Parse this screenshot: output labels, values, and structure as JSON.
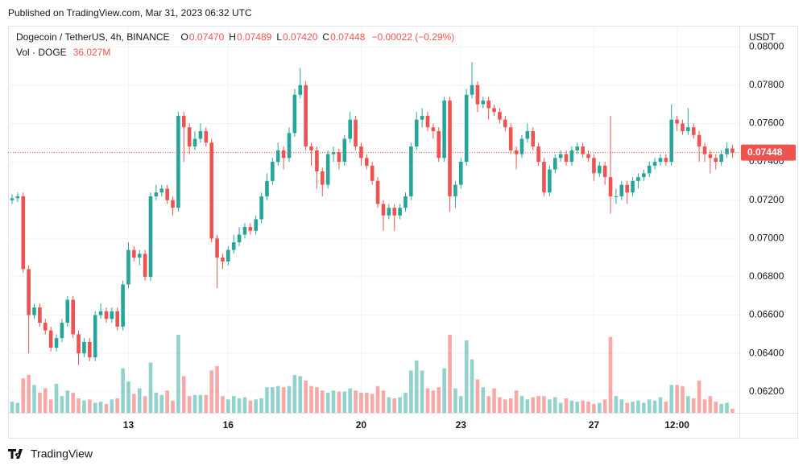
{
  "chart_data": {
    "type": "candlestick",
    "published": "Published on TradingView.com, Mar 31, 2023 06:32 UTC",
    "title": "Dogecoin / TetherUS, 4h, BINANCE",
    "ohlc_labels": [
      {
        "key": "O",
        "label": "0.07470"
      },
      {
        "key": "H",
        "label": "0.07489"
      },
      {
        "key": "L",
        "label": "0.07420"
      },
      {
        "key": "C",
        "label": "0.07448"
      }
    ],
    "change_label": "−0.00022 (−0.29%)",
    "volume_label": "Vol · DOGE",
    "volume_value_label": "36.027M",
    "y_axis_label": "USDT",
    "last_price_label": "0.07448",
    "brand": "TradingView",
    "up_color": "#26a69a",
    "down_color": "#ef5350",
    "categories": [
      null,
      null,
      null,
      null,
      null,
      null,
      null,
      null,
      null,
      null,
      null,
      null,
      null,
      null,
      null,
      null,
      null,
      null,
      null,
      null,
      null,
      "13",
      null,
      null,
      null,
      null,
      null,
      null,
      null,
      null,
      null,
      null,
      null,
      null,
      null,
      null,
      null,
      null,
      null,
      "16",
      null,
      null,
      null,
      null,
      null,
      null,
      null,
      null,
      null,
      null,
      null,
      null,
      null,
      null,
      null,
      null,
      null,
      null,
      null,
      null,
      null,
      null,
      null,
      "20",
      null,
      null,
      null,
      null,
      null,
      null,
      null,
      null,
      null,
      null,
      null,
      null,
      null,
      null,
      null,
      null,
      null,
      "23",
      null,
      null,
      null,
      null,
      null,
      null,
      null,
      null,
      null,
      null,
      null,
      null,
      null,
      null,
      null,
      null,
      null,
      null,
      null,
      null,
      null,
      null,
      null,
      "27",
      null,
      null,
      null,
      null,
      null,
      null,
      null,
      null,
      null,
      null,
      null,
      null,
      null,
      null,
      "12:00",
      null,
      null,
      null,
      null,
      null,
      null,
      null,
      null,
      null,
      null
    ],
    "open": [
      0.072,
      0.0721,
      0.0722,
      0.0684,
      0.066,
      0.0664,
      0.0656,
      0.0652,
      0.0643,
      0.0648,
      0.0656,
      0.0668,
      0.065,
      0.064,
      0.0646,
      0.0638,
      0.066,
      0.0662,
      0.0658,
      0.0662,
      0.0654,
      0.0676,
      0.0694,
      0.069,
      0.0692,
      0.068,
      0.0722,
      0.0724,
      0.0726,
      0.072,
      0.0716,
      0.0764,
      0.0758,
      0.0748,
      0.0752,
      0.0756,
      0.075,
      0.07,
      0.069,
      0.0688,
      0.0694,
      0.0698,
      0.0702,
      0.0706,
      0.0704,
      0.071,
      0.0722,
      0.073,
      0.074,
      0.0746,
      0.0742,
      0.0755,
      0.0775,
      0.078,
      0.0748,
      0.0746,
      0.0735,
      0.0728,
      0.0744,
      0.0745,
      0.074,
      0.0752,
      0.0762,
      0.0748,
      0.0742,
      0.0738,
      0.073,
      0.0718,
      0.0712,
      0.0716,
      0.0712,
      0.0716,
      0.0722,
      0.0748,
      0.0762,
      0.0764,
      0.0758,
      0.0756,
      0.0742,
      0.0772,
      0.0722,
      0.0728,
      0.074,
      0.0775,
      0.078,
      0.077,
      0.0772,
      0.0768,
      0.0766,
      0.0762,
      0.0758,
      0.0746,
      0.0744,
      0.0752,
      0.0756,
      0.0748,
      0.074,
      0.0724,
      0.0736,
      0.0742,
      0.0744,
      0.074,
      0.0746,
      0.0748,
      0.0744,
      0.0742,
      0.0734,
      0.0738,
      0.0732,
      0.0722,
      0.0722,
      0.0728,
      0.0724,
      0.073,
      0.0732,
      0.0734,
      0.0738,
      0.074,
      0.0742,
      0.074,
      0.0762,
      0.076,
      0.0756,
      0.0758,
      0.0754,
      0.0748,
      0.0744,
      0.0742,
      0.074,
      0.0744,
      0.0747
    ],
    "high": [
      0.0723,
      0.0724,
      0.0724,
      0.0686,
      0.0666,
      0.0666,
      0.0658,
      0.0654,
      0.065,
      0.0658,
      0.067,
      0.067,
      0.0652,
      0.0648,
      0.0648,
      0.0662,
      0.0666,
      0.0664,
      0.0664,
      0.0664,
      0.0678,
      0.0698,
      0.0696,
      0.0694,
      0.0694,
      0.0724,
      0.0728,
      0.0728,
      0.0728,
      0.0722,
      0.0766,
      0.0766,
      0.076,
      0.0756,
      0.076,
      0.0758,
      0.0752,
      0.0702,
      0.0692,
      0.0696,
      0.0702,
      0.0706,
      0.0708,
      0.0708,
      0.0712,
      0.0724,
      0.0734,
      0.0742,
      0.075,
      0.0748,
      0.0758,
      0.0778,
      0.0789,
      0.0782,
      0.075,
      0.0748,
      0.0737,
      0.0746,
      0.0748,
      0.0747,
      0.0754,
      0.0766,
      0.0764,
      0.075,
      0.0744,
      0.074,
      0.0732,
      0.072,
      0.0718,
      0.0718,
      0.0718,
      0.0724,
      0.075,
      0.0766,
      0.0768,
      0.0766,
      0.076,
      0.0758,
      0.0774,
      0.0774,
      0.073,
      0.0742,
      0.0778,
      0.0792,
      0.0782,
      0.0774,
      0.0774,
      0.077,
      0.0768,
      0.0764,
      0.076,
      0.0748,
      0.0754,
      0.076,
      0.0758,
      0.075,
      0.0742,
      0.0738,
      0.0744,
      0.0746,
      0.0746,
      0.0748,
      0.075,
      0.075,
      0.0746,
      0.0744,
      0.074,
      0.074,
      0.0764,
      0.0726,
      0.073,
      0.073,
      0.0732,
      0.0734,
      0.0736,
      0.074,
      0.0742,
      0.0744,
      0.0744,
      0.077,
      0.0764,
      0.0762,
      0.0768,
      0.076,
      0.0756,
      0.075,
      0.0746,
      0.0744,
      0.0746,
      0.075,
      0.07489
    ],
    "low": [
      0.0718,
      0.0719,
      0.0682,
      0.064,
      0.0658,
      0.0654,
      0.065,
      0.0641,
      0.0641,
      0.0646,
      0.0654,
      0.0648,
      0.0634,
      0.0638,
      0.0636,
      0.0636,
      0.0658,
      0.0656,
      0.0656,
      0.0652,
      0.0652,
      0.0674,
      0.0688,
      0.0686,
      0.0678,
      0.0678,
      0.072,
      0.0722,
      0.0718,
      0.0712,
      0.0714,
      0.074,
      0.0744,
      0.0746,
      0.075,
      0.0748,
      0.0698,
      0.0674,
      0.0684,
      0.0686,
      0.0692,
      0.0696,
      0.07,
      0.0702,
      0.0702,
      0.0708,
      0.072,
      0.0728,
      0.0738,
      0.0736,
      0.074,
      0.0753,
      0.0773,
      0.0746,
      0.0738,
      0.0726,
      0.0722,
      0.0726,
      0.074,
      0.0736,
      0.0738,
      0.075,
      0.0746,
      0.0738,
      0.0736,
      0.0728,
      0.0716,
      0.0704,
      0.071,
      0.0704,
      0.071,
      0.0714,
      0.072,
      0.0746,
      0.0758,
      0.0756,
      0.0752,
      0.074,
      0.074,
      0.0714,
      0.0716,
      0.0726,
      0.0738,
      0.0773,
      0.0766,
      0.0768,
      0.0762,
      0.0764,
      0.076,
      0.0756,
      0.0744,
      0.0736,
      0.0742,
      0.075,
      0.0746,
      0.0738,
      0.0722,
      0.0722,
      0.0734,
      0.074,
      0.0738,
      0.0738,
      0.0744,
      0.0742,
      0.074,
      0.073,
      0.0732,
      0.0728,
      0.0713,
      0.0718,
      0.072,
      0.0718,
      0.0722,
      0.0726,
      0.073,
      0.0732,
      0.0736,
      0.0738,
      0.0738,
      0.0738,
      0.0756,
      0.0754,
      0.0754,
      0.0752,
      0.074,
      0.074,
      0.0734,
      0.0736,
      0.0738,
      0.0742,
      0.0742
    ],
    "close": [
      0.0721,
      0.0722,
      0.0684,
      0.066,
      0.0664,
      0.0656,
      0.0652,
      0.0643,
      0.0648,
      0.0656,
      0.0668,
      0.065,
      0.064,
      0.0646,
      0.0638,
      0.066,
      0.0662,
      0.0658,
      0.0662,
      0.0654,
      0.0676,
      0.0694,
      0.069,
      0.0692,
      0.068,
      0.0722,
      0.0724,
      0.0726,
      0.072,
      0.0716,
      0.0764,
      0.0758,
      0.0748,
      0.0752,
      0.0756,
      0.075,
      0.07,
      0.069,
      0.0688,
      0.0694,
      0.0698,
      0.0702,
      0.0706,
      0.0704,
      0.071,
      0.0722,
      0.073,
      0.074,
      0.0746,
      0.0742,
      0.0755,
      0.0775,
      0.078,
      0.0748,
      0.0746,
      0.0735,
      0.0728,
      0.0744,
      0.0745,
      0.074,
      0.0752,
      0.0762,
      0.0748,
      0.0742,
      0.0738,
      0.073,
      0.0718,
      0.0712,
      0.0716,
      0.0712,
      0.0716,
      0.0722,
      0.0748,
      0.0762,
      0.0764,
      0.0758,
      0.0756,
      0.0742,
      0.0772,
      0.0722,
      0.0728,
      0.074,
      0.0775,
      0.078,
      0.077,
      0.0772,
      0.0768,
      0.0766,
      0.0762,
      0.0758,
      0.0746,
      0.0744,
      0.0752,
      0.0756,
      0.0748,
      0.074,
      0.0724,
      0.0736,
      0.0742,
      0.0744,
      0.074,
      0.0746,
      0.0748,
      0.0744,
      0.0742,
      0.0734,
      0.0738,
      0.0732,
      0.0722,
      0.0722,
      0.0728,
      0.0724,
      0.073,
      0.0732,
      0.0734,
      0.0738,
      0.074,
      0.0742,
      0.074,
      0.0762,
      0.076,
      0.0756,
      0.0758,
      0.0754,
      0.0748,
      0.0744,
      0.0742,
      0.074,
      0.0744,
      0.0747,
      0.07448
    ],
    "volume": [
      100,
      90,
      310,
      340,
      250,
      180,
      220,
      120,
      260,
      150,
      200,
      180,
      130,
      110,
      120,
      90,
      100,
      80,
      120,
      130,
      400,
      280,
      170,
      220,
      150,
      450,
      180,
      160,
      200,
      110,
      700,
      330,
      150,
      160,
      160,
      160,
      380,
      420,
      150,
      120,
      150,
      130,
      140,
      110,
      120,
      130,
      230,
      230,
      240,
      230,
      240,
      340,
      330,
      290,
      240,
      230,
      200,
      180,
      200,
      190,
      190,
      220,
      200,
      180,
      180,
      170,
      240,
      200,
      140,
      130,
      140,
      180,
      380,
      470,
      380,
      220,
      200,
      230,
      400,
      700,
      220,
      150,
      650,
      480,
      300,
      230,
      150,
      220,
      140,
      120,
      130,
      200,
      150,
      120,
      140,
      150,
      150,
      120,
      140,
      90,
      130,
      110,
      100,
      110,
      100,
      80,
      90,
      120,
      680,
      150,
      120,
      90,
      100,
      110,
      90,
      120,
      110,
      140,
      100,
      250,
      250,
      240,
      150,
      130,
      290,
      120,
      150,
      100,
      80,
      90,
      36.027
    ],
    "ylim": [
      0.0609,
      0.0811
    ],
    "yticks": [
      {
        "value": 0.062,
        "label": "0.06200"
      },
      {
        "value": 0.064,
        "label": "0.06400"
      },
      {
        "value": 0.066,
        "label": "0.06600"
      },
      {
        "value": 0.068,
        "label": "0.06800"
      },
      {
        "value": 0.07,
        "label": "0.07000"
      },
      {
        "value": 0.072,
        "label": "0.07200"
      },
      {
        "value": 0.074,
        "label": "0.07400"
      },
      {
        "value": 0.076,
        "label": "0.07600"
      },
      {
        "value": 0.078,
        "label": "0.07800"
      },
      {
        "value": 0.08,
        "label": "0.08000"
      }
    ],
    "grid": true
  }
}
